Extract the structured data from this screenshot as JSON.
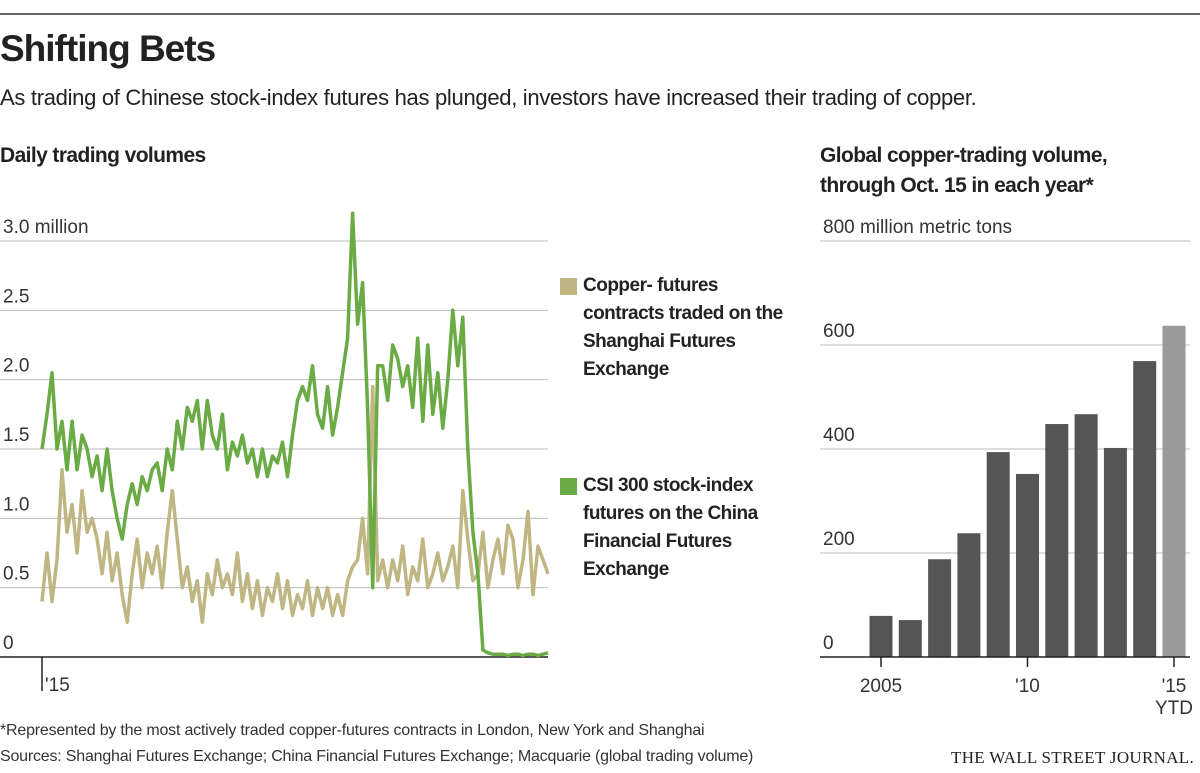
{
  "header": {
    "title": "Shifting Bets",
    "subtitle": "As trading of Chinese stock-index futures has plunged, investors have increased their trading of copper."
  },
  "chart_data": [
    {
      "type": "line",
      "title": "Daily trading volumes",
      "categories": [
        "'15",
        null,
        null,
        null,
        null,
        null,
        null,
        null,
        null,
        null,
        null,
        null,
        null,
        null,
        null,
        null,
        null,
        null,
        null,
        null,
        null,
        null,
        null,
        null,
        null,
        null,
        null,
        null,
        null,
        null,
        null,
        null,
        null,
        null,
        null,
        null,
        null,
        null,
        null,
        null,
        null,
        null,
        null,
        null,
        null,
        null,
        null,
        null,
        null,
        null,
        null,
        null,
        null,
        null,
        null,
        null,
        null,
        null,
        null,
        null,
        null,
        null,
        null,
        null,
        null,
        null,
        null,
        null,
        null,
        null,
        null,
        null,
        null,
        null,
        null,
        null,
        null,
        null,
        null,
        null,
        null,
        null,
        null,
        null,
        null,
        null,
        null,
        null,
        null,
        null,
        null,
        null,
        null,
        null,
        null,
        null,
        null,
        null,
        null,
        null,
        null,
        null
      ],
      "series": [
        {
          "name": "Copper- futures contracts traded on the Shanghai Futures Exchange",
          "color": "#bfb684",
          "values": [
            0.4,
            0.75,
            0.4,
            0.7,
            1.35,
            0.9,
            1.1,
            0.75,
            1.2,
            0.9,
            1.0,
            0.85,
            0.6,
            0.9,
            0.55,
            0.75,
            0.45,
            0.25,
            0.6,
            0.85,
            0.5,
            0.75,
            0.6,
            0.8,
            0.5,
            0.9,
            1.2,
            0.85,
            0.5,
            0.65,
            0.4,
            0.55,
            0.25,
            0.6,
            0.45,
            0.7,
            0.5,
            0.6,
            0.45,
            0.75,
            0.4,
            0.6,
            0.35,
            0.55,
            0.3,
            0.5,
            0.4,
            0.6,
            0.35,
            0.55,
            0.3,
            0.45,
            0.35,
            0.55,
            0.3,
            0.5,
            0.35,
            0.5,
            0.3,
            0.45,
            0.3,
            0.55,
            0.65,
            0.7,
            1.0,
            0.6,
            1.95,
            0.55,
            0.7,
            0.5,
            0.7,
            0.55,
            0.8,
            0.45,
            0.65,
            0.55,
            0.85,
            0.5,
            0.6,
            0.75,
            0.55,
            0.65,
            0.8,
            0.5,
            1.2,
            0.85,
            0.55,
            0.6,
            0.9,
            0.5,
            0.7,
            0.85,
            0.6,
            0.95,
            0.85,
            0.5,
            0.7,
            1.05,
            0.45,
            0.8,
            0.7,
            0.6
          ]
        },
        {
          "name": "CSI 300 stock-index futures on the China Financial Futures Exchange",
          "color": "#6aab45",
          "values": [
            1.5,
            1.75,
            2.05,
            1.5,
            1.7,
            1.35,
            1.7,
            1.35,
            1.6,
            1.5,
            1.3,
            1.45,
            1.2,
            1.5,
            1.2,
            1.0,
            0.85,
            1.1,
            1.25,
            1.1,
            1.3,
            1.2,
            1.35,
            1.4,
            1.2,
            1.5,
            1.35,
            1.7,
            1.5,
            1.8,
            1.7,
            1.85,
            1.5,
            1.85,
            1.6,
            1.5,
            1.75,
            1.35,
            1.55,
            1.45,
            1.6,
            1.4,
            1.5,
            1.3,
            1.5,
            1.3,
            1.45,
            1.4,
            1.55,
            1.3,
            1.6,
            1.85,
            1.95,
            1.85,
            2.1,
            1.75,
            1.65,
            1.95,
            1.6,
            1.8,
            2.05,
            2.3,
            3.2,
            2.4,
            2.7,
            1.8,
            0.5,
            2.1,
            2.1,
            1.85,
            2.25,
            2.15,
            1.95,
            2.1,
            1.8,
            2.3,
            1.7,
            2.25,
            1.75,
            2.05,
            1.65,
            2.0,
            2.5,
            2.1,
            2.45,
            1.5,
            0.9,
            0.6,
            0.05,
            0.03,
            0.02,
            0.02,
            0.02,
            0.01,
            0.02,
            0.02,
            0.01,
            0.02,
            0.02,
            0.01,
            0.02,
            0.03
          ]
        }
      ],
      "ylim": [
        0,
        3
      ],
      "yticks": [
        0,
        0.5,
        {
          "value": 1,
          "label": "1.0"
        },
        1.5,
        {
          "value": 2,
          "label": "2.0"
        },
        2.5,
        {
          "value": 3,
          "label": "3.0 million"
        }
      ],
      "grid": true,
      "legend": "right"
    },
    {
      "type": "bar",
      "title": [
        "Global copper-trading volume,",
        "through Oct. 15 in each year*"
      ],
      "categories": [
        "2005",
        null,
        null,
        null,
        null,
        "'10",
        null,
        null,
        null,
        null,
        "'15 YTD"
      ],
      "values": [
        79,
        71,
        188,
        238,
        394,
        352,
        448,
        467,
        402,
        569,
        637
      ],
      "colors": [
        "#555555",
        "#555555",
        "#555555",
        "#555555",
        "#555555",
        "#555555",
        "#555555",
        "#555555",
        "#555555",
        "#555555",
        "#9a9a9a"
      ],
      "ylim": [
        0,
        800
      ],
      "yticks": [
        0,
        200,
        400,
        600,
        {
          "value": 800,
          "label": "800 million metric tons"
        }
      ],
      "grid": true
    }
  ],
  "footer": {
    "note": "*Represented by the most actively traded copper-futures contracts in London, New York and Shanghai",
    "source": "Sources: Shanghai Futures Exchange; China Financial Futures Exchange; Macquarie (global trading volume)",
    "credit": "THE WALL STREET JOURNAL."
  }
}
